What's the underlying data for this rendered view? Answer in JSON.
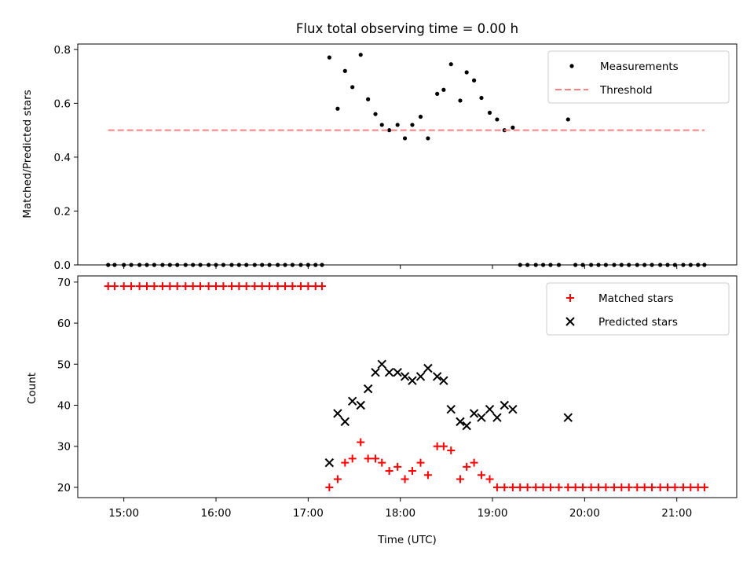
{
  "chart_data": [
    {
      "type": "scatter",
      "title": "Flux total observing time = 0.00 h",
      "xlabel": "",
      "ylabel": "Matched/Predicted stars",
      "ylim": [
        0.0,
        0.82
      ],
      "yticks": [
        "0.0",
        "0.2",
        "0.4",
        "0.6",
        "0.8"
      ],
      "xlim_hours": [
        14.5,
        21.65
      ],
      "xticks": [
        "15:00",
        "16:00",
        "17:00",
        "18:00",
        "19:00",
        "20:00",
        "21:00"
      ],
      "show_xtick_labels": false,
      "legend": "top-right",
      "series": [
        {
          "name": "Measurements",
          "marker": "dot",
          "color": "#000000",
          "points": [
            [
              14.83,
              0
            ],
            [
              14.9,
              0
            ],
            [
              15.0,
              0
            ],
            [
              15.08,
              0
            ],
            [
              15.17,
              0
            ],
            [
              15.25,
              0
            ],
            [
              15.33,
              0
            ],
            [
              15.42,
              0
            ],
            [
              15.5,
              0
            ],
            [
              15.58,
              0
            ],
            [
              15.67,
              0
            ],
            [
              15.75,
              0
            ],
            [
              15.83,
              0
            ],
            [
              15.92,
              0
            ],
            [
              16.0,
              0
            ],
            [
              16.08,
              0
            ],
            [
              16.17,
              0
            ],
            [
              16.25,
              0
            ],
            [
              16.33,
              0
            ],
            [
              16.42,
              0
            ],
            [
              16.5,
              0
            ],
            [
              16.58,
              0
            ],
            [
              16.67,
              0
            ],
            [
              16.75,
              0
            ],
            [
              16.83,
              0
            ],
            [
              16.92,
              0
            ],
            [
              17.0,
              0
            ],
            [
              17.08,
              0
            ],
            [
              17.15,
              0
            ],
            [
              17.23,
              0.77
            ],
            [
              17.32,
              0.58
            ],
            [
              17.4,
              0.72
            ],
            [
              17.48,
              0.66
            ],
            [
              17.57,
              0.78
            ],
            [
              17.65,
              0.615
            ],
            [
              17.73,
              0.56
            ],
            [
              17.8,
              0.52
            ],
            [
              17.88,
              0.5
            ],
            [
              17.97,
              0.52
            ],
            [
              18.05,
              0.47
            ],
            [
              18.13,
              0.52
            ],
            [
              18.22,
              0.55
            ],
            [
              18.3,
              0.47
            ],
            [
              18.4,
              0.635
            ],
            [
              18.47,
              0.65
            ],
            [
              18.55,
              0.745
            ],
            [
              18.65,
              0.61
            ],
            [
              18.72,
              0.715
            ],
            [
              18.8,
              0.685
            ],
            [
              18.88,
              0.62
            ],
            [
              18.97,
              0.565
            ],
            [
              19.05,
              0.54
            ],
            [
              19.13,
              0.5
            ],
            [
              19.22,
              0.51
            ],
            [
              19.3,
              0
            ],
            [
              19.38,
              0
            ],
            [
              19.47,
              0
            ],
            [
              19.55,
              0
            ],
            [
              19.63,
              0
            ],
            [
              19.72,
              0
            ],
            [
              19.82,
              0.54
            ],
            [
              19.9,
              0
            ],
            [
              19.98,
              0
            ],
            [
              20.07,
              0
            ],
            [
              20.15,
              0
            ],
            [
              20.23,
              0
            ],
            [
              20.32,
              0
            ],
            [
              20.4,
              0
            ],
            [
              20.48,
              0
            ],
            [
              20.57,
              0
            ],
            [
              20.65,
              0
            ],
            [
              20.73,
              0
            ],
            [
              20.82,
              0
            ],
            [
              20.9,
              0
            ],
            [
              20.98,
              0
            ],
            [
              21.07,
              0
            ],
            [
              21.15,
              0
            ],
            [
              21.23,
              0
            ],
            [
              21.3,
              0
            ]
          ]
        },
        {
          "name": "Threshold",
          "style": "dashed",
          "color": "#ff7f7f",
          "points": [
            [
              14.83,
              0.5
            ],
            [
              21.3,
              0.5
            ]
          ]
        }
      ]
    },
    {
      "type": "scatter",
      "title": "",
      "xlabel": "Time (UTC)",
      "ylabel": "Count",
      "ylim": [
        17.5,
        71.5
      ],
      "yticks": [
        "20",
        "30",
        "40",
        "50",
        "60",
        "70"
      ],
      "xlim_hours": [
        14.5,
        21.65
      ],
      "xticks": [
        "15:00",
        "16:00",
        "17:00",
        "18:00",
        "19:00",
        "20:00",
        "21:00"
      ],
      "show_xtick_labels": true,
      "legend": "top-right",
      "series": [
        {
          "name": "Matched stars",
          "marker": "plus",
          "color": "#ff0000",
          "points": [
            [
              14.83,
              69
            ],
            [
              14.9,
              69
            ],
            [
              15.0,
              69
            ],
            [
              15.08,
              69
            ],
            [
              15.17,
              69
            ],
            [
              15.25,
              69
            ],
            [
              15.33,
              69
            ],
            [
              15.42,
              69
            ],
            [
              15.5,
              69
            ],
            [
              15.58,
              69
            ],
            [
              15.67,
              69
            ],
            [
              15.75,
              69
            ],
            [
              15.83,
              69
            ],
            [
              15.92,
              69
            ],
            [
              16.0,
              69
            ],
            [
              16.08,
              69
            ],
            [
              16.17,
              69
            ],
            [
              16.25,
              69
            ],
            [
              16.33,
              69
            ],
            [
              16.42,
              69
            ],
            [
              16.5,
              69
            ],
            [
              16.58,
              69
            ],
            [
              16.67,
              69
            ],
            [
              16.75,
              69
            ],
            [
              16.83,
              69
            ],
            [
              16.92,
              69
            ],
            [
              17.0,
              69
            ],
            [
              17.08,
              69
            ],
            [
              17.15,
              69
            ],
            [
              17.23,
              20
            ],
            [
              17.32,
              22
            ],
            [
              17.4,
              26
            ],
            [
              17.48,
              27
            ],
            [
              17.57,
              31
            ],
            [
              17.65,
              27
            ],
            [
              17.73,
              27
            ],
            [
              17.8,
              26
            ],
            [
              17.88,
              24
            ],
            [
              17.97,
              25
            ],
            [
              18.05,
              22
            ],
            [
              18.13,
              24
            ],
            [
              18.22,
              26
            ],
            [
              18.3,
              23
            ],
            [
              18.4,
              30
            ],
            [
              18.47,
              30
            ],
            [
              18.55,
              29
            ],
            [
              18.65,
              22
            ],
            [
              18.72,
              25
            ],
            [
              18.8,
              26
            ],
            [
              18.88,
              23
            ],
            [
              18.97,
              22
            ],
            [
              19.05,
              20
            ],
            [
              19.13,
              20
            ],
            [
              19.22,
              20
            ],
            [
              19.3,
              20
            ],
            [
              19.38,
              20
            ],
            [
              19.47,
              20
            ],
            [
              19.55,
              20
            ],
            [
              19.63,
              20
            ],
            [
              19.72,
              20
            ],
            [
              19.82,
              20
            ],
            [
              19.9,
              20
            ],
            [
              19.98,
              20
            ],
            [
              20.07,
              20
            ],
            [
              20.15,
              20
            ],
            [
              20.23,
              20
            ],
            [
              20.32,
              20
            ],
            [
              20.4,
              20
            ],
            [
              20.48,
              20
            ],
            [
              20.57,
              20
            ],
            [
              20.65,
              20
            ],
            [
              20.73,
              20
            ],
            [
              20.82,
              20
            ],
            [
              20.9,
              20
            ],
            [
              20.98,
              20
            ],
            [
              21.07,
              20
            ],
            [
              21.15,
              20
            ],
            [
              21.23,
              20
            ],
            [
              21.3,
              20
            ]
          ]
        },
        {
          "name": "Predicted stars",
          "marker": "x",
          "color": "#000000",
          "points": [
            [
              17.23,
              26
            ],
            [
              17.32,
              38
            ],
            [
              17.4,
              36
            ],
            [
              17.48,
              41
            ],
            [
              17.57,
              40
            ],
            [
              17.65,
              44
            ],
            [
              17.73,
              48
            ],
            [
              17.8,
              50
            ],
            [
              17.88,
              48
            ],
            [
              17.97,
              48
            ],
            [
              18.05,
              47
            ],
            [
              18.13,
              46
            ],
            [
              18.22,
              47
            ],
            [
              18.3,
              49
            ],
            [
              18.4,
              47
            ],
            [
              18.47,
              46
            ],
            [
              18.55,
              39
            ],
            [
              18.65,
              36
            ],
            [
              18.72,
              35
            ],
            [
              18.8,
              38
            ],
            [
              18.88,
              37
            ],
            [
              18.97,
              39
            ],
            [
              19.05,
              37
            ],
            [
              19.13,
              40
            ],
            [
              19.22,
              39
            ],
            [
              19.82,
              37
            ]
          ]
        }
      ]
    }
  ]
}
